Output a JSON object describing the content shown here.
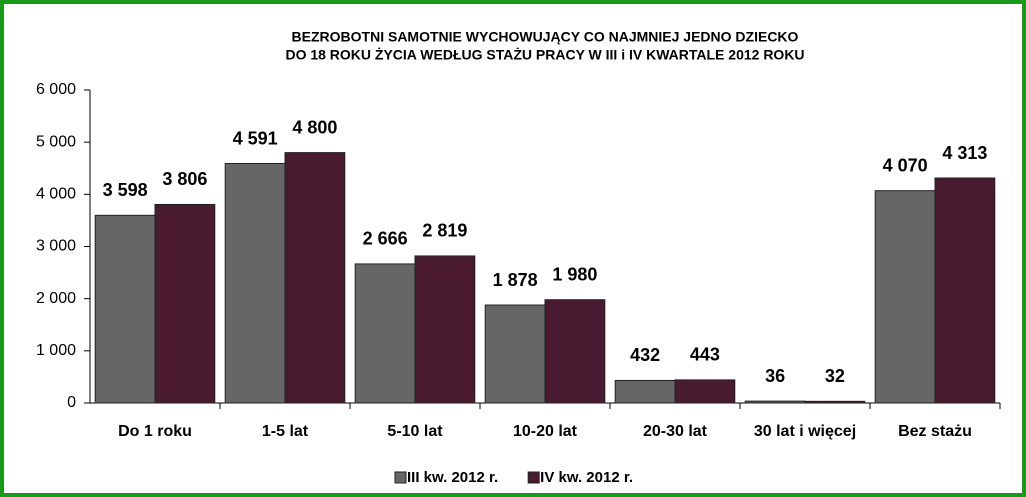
{
  "chart_data": {
    "type": "bar",
    "title": [
      "BEZROBOTNI  SAMOTNIE WYCHOWUJĄCY CO NAJMNIEJ JEDNO DZIECKO",
      "DO 18 ROKU ŻYCIA WEDŁUG STAŻU  PRACY  W  III i IV KWARTALE 2012  ROKU"
    ],
    "categories": [
      "Do 1 roku",
      "1-5 lat",
      "5-10 lat",
      "10-20 lat",
      "20-30 lat",
      "30 lat i więcej",
      "Bez stażu"
    ],
    "series": [
      {
        "name": "III kw. 2012 r.",
        "color": "#666666",
        "values": [
          3598,
          4591,
          2666,
          1878,
          432,
          36,
          4070
        ],
        "value_labels": [
          "3 598",
          "4 591",
          "2 666",
          "1 878",
          "432",
          "36",
          "4 070"
        ]
      },
      {
        "name": "IV kw. 2012 r.",
        "color": "#4a1a30",
        "values": [
          3806,
          4800,
          2819,
          1980,
          443,
          32,
          4313
        ],
        "value_labels": [
          "3 806",
          "4 800",
          "2 819",
          "1 980",
          "443",
          "32",
          "4 313"
        ]
      }
    ],
    "ylim": [
      0,
      6000
    ],
    "yticks": [
      0,
      {
        "value": 1000,
        "label": "1 000"
      },
      {
        "value": 2000,
        "label": "2 000"
      },
      {
        "value": 3000,
        "label": "3 000"
      },
      {
        "value": 4000,
        "label": "4 000"
      },
      {
        "value": 5000,
        "label": "5 000"
      },
      {
        "value": 6000,
        "label": "6 000"
      }
    ],
    "legend": "bottom"
  }
}
